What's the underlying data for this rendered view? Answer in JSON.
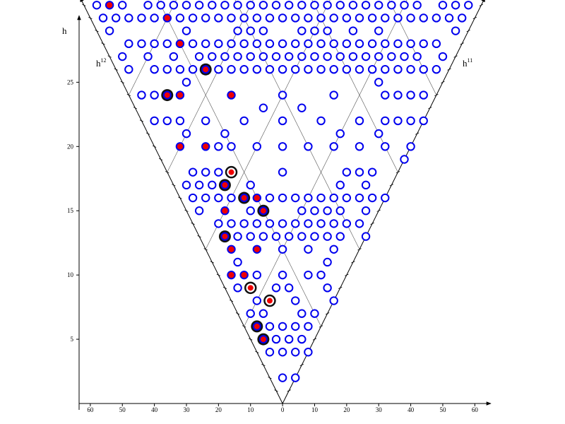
{
  "chart_data": {
    "type": "scatter",
    "y_label": "h",
    "edge_labels": [
      {
        "base": "h",
        "sup": "12"
      },
      {
        "base": "h",
        "sup": "11"
      }
    ],
    "xlim": [
      -63.5,
      65
    ],
    "ylim": [
      0,
      31.4
    ],
    "xticks": [
      {
        "value": -60,
        "label": "60"
      },
      {
        "value": -50,
        "label": "50"
      },
      {
        "value": -40,
        "label": "40"
      },
      {
        "value": -30,
        "label": "30"
      },
      {
        "value": -20,
        "label": "20"
      },
      {
        "value": -10,
        "label": "10"
      },
      0,
      10,
      20,
      30,
      40,
      50,
      60
    ],
    "yticks": [
      5,
      10,
      15,
      20,
      25
    ],
    "series": [
      {
        "color": "#0000ee",
        "marker": "open",
        "x": [
          -58,
          -50,
          -42,
          -38,
          -34,
          -30,
          -26,
          -22,
          -18,
          -14,
          -10,
          -6,
          -2,
          2,
          6,
          10,
          14,
          18,
          22,
          26,
          30,
          34,
          38,
          42,
          50,
          54,
          58,
          -56,
          -52,
          -48,
          -44,
          -40,
          -32,
          -28,
          -24,
          -20,
          -16,
          -12,
          -8,
          -4,
          0,
          4,
          8,
          12,
          16,
          20,
          24,
          28,
          32,
          36,
          40,
          44,
          48,
          52,
          56,
          -54,
          -30,
          -14,
          -10,
          -6,
          6,
          10,
          14,
          22,
          30,
          54,
          -48,
          -44,
          -40,
          -36,
          -28,
          -24,
          -20,
          -16,
          -12,
          -8,
          -4,
          0,
          4,
          8,
          12,
          16,
          20,
          24,
          28,
          32,
          36,
          40,
          44,
          48,
          -50,
          -42,
          -34,
          -26,
          -22,
          -18,
          -14,
          -10,
          -6,
          -2,
          2,
          6,
          10,
          14,
          18,
          22,
          26,
          30,
          34,
          38,
          42,
          50,
          -48,
          -40,
          -36,
          -32,
          -28,
          -20,
          -16,
          -12,
          -8,
          -4,
          0,
          4,
          8,
          12,
          16,
          20,
          24,
          28,
          32,
          36,
          40,
          44,
          48,
          -30,
          30,
          -44,
          -40,
          0,
          16,
          32,
          36,
          40,
          44,
          -6,
          6,
          -40,
          -36,
          -32,
          -24,
          -12,
          0,
          12,
          24,
          32,
          36,
          40,
          44,
          -30,
          -18,
          18,
          30,
          -20,
          -16,
          -8,
          0,
          8,
          16,
          24,
          32,
          40,
          38,
          -28,
          -24,
          -20,
          0,
          20,
          24,
          28,
          -30,
          -26,
          -22,
          -10,
          18,
          26,
          -28,
          -24,
          -20,
          -16,
          -4,
          0,
          4,
          8,
          12,
          16,
          20,
          24,
          28,
          32,
          -26,
          -10,
          6,
          10,
          14,
          18,
          26,
          -20,
          -16,
          -12,
          -8,
          -4,
          0,
          4,
          8,
          12,
          16,
          20,
          24,
          -14,
          -10,
          -6,
          -2,
          2,
          6,
          10,
          14,
          18,
          26,
          0,
          8,
          16,
          -14,
          14,
          -8,
          0,
          8,
          12,
          -14,
          -2,
          2,
          14,
          -8,
          4,
          16,
          -10,
          -6,
          6,
          10,
          -4,
          0,
          4,
          8,
          -2,
          2,
          6,
          -4,
          0,
          4,
          8,
          0,
          4
        ],
        "values": [
          31,
          31,
          31,
          31,
          31,
          31,
          31,
          31,
          31,
          31,
          31,
          31,
          31,
          31,
          31,
          31,
          31,
          31,
          31,
          31,
          31,
          31,
          31,
          31,
          31,
          31,
          31,
          30,
          30,
          30,
          30,
          30,
          30,
          30,
          30,
          30,
          30,
          30,
          30,
          30,
          30,
          30,
          30,
          30,
          30,
          30,
          30,
          30,
          30,
          30,
          30,
          30,
          30,
          30,
          30,
          29,
          29,
          29,
          29,
          29,
          29,
          29,
          29,
          29,
          29,
          29,
          28,
          28,
          28,
          28,
          28,
          28,
          28,
          28,
          28,
          28,
          28,
          28,
          28,
          28,
          28,
          28,
          28,
          28,
          28,
          28,
          28,
          28,
          28,
          28,
          27,
          27,
          27,
          27,
          27,
          27,
          27,
          27,
          27,
          27,
          27,
          27,
          27,
          27,
          27,
          27,
          27,
          27,
          27,
          27,
          27,
          27,
          26,
          26,
          26,
          26,
          26,
          26,
          26,
          26,
          26,
          26,
          26,
          26,
          26,
          26,
          26,
          26,
          26,
          26,
          26,
          26,
          26,
          26,
          26,
          25,
          25,
          24,
          24,
          24,
          24,
          24,
          24,
          24,
          24,
          23,
          23,
          22,
          22,
          22,
          22,
          22,
          22,
          22,
          22,
          22,
          22,
          22,
          22,
          21,
          21,
          21,
          21,
          20,
          20,
          20,
          20,
          20,
          20,
          20,
          20,
          20,
          19,
          18,
          18,
          18,
          18,
          18,
          18,
          18,
          17,
          17,
          17,
          17,
          17,
          17,
          16,
          16,
          16,
          16,
          16,
          16,
          16,
          16,
          16,
          16,
          16,
          16,
          16,
          16,
          15,
          15,
          15,
          15,
          15,
          15,
          15,
          14,
          14,
          14,
          14,
          14,
          14,
          14,
          14,
          14,
          14,
          14,
          14,
          13,
          13,
          13,
          13,
          13,
          13,
          13,
          13,
          13,
          13,
          12,
          12,
          12,
          11,
          11,
          10,
          10,
          10,
          10,
          9,
          9,
          9,
          9,
          8,
          8,
          8,
          7,
          7,
          7,
          7,
          6,
          6,
          6,
          6,
          5,
          5,
          5,
          4,
          4,
          4,
          4,
          2,
          2
        ]
      },
      {
        "color": "#ee0000",
        "marker": "filled",
        "x": [
          -54,
          -36,
          -32,
          -32,
          -16,
          -32,
          -24,
          -8,
          -18,
          -16,
          -8,
          -16,
          -12
        ],
        "values": [
          31,
          30,
          28,
          24,
          24,
          20,
          20,
          16,
          15,
          12,
          12,
          10,
          10
        ]
      },
      {
        "color": "#ee0000",
        "marker": "big",
        "x": [
          -24,
          -36,
          -18,
          -12,
          -6,
          -18,
          -8,
          -6
        ],
        "values": [
          26,
          24,
          17,
          16,
          15,
          13,
          6,
          5
        ]
      },
      {
        "color": "#ee0000",
        "marker": "ring",
        "x": [
          -16,
          -10,
          -4
        ],
        "values": [
          18,
          9,
          8
        ]
      }
    ]
  }
}
